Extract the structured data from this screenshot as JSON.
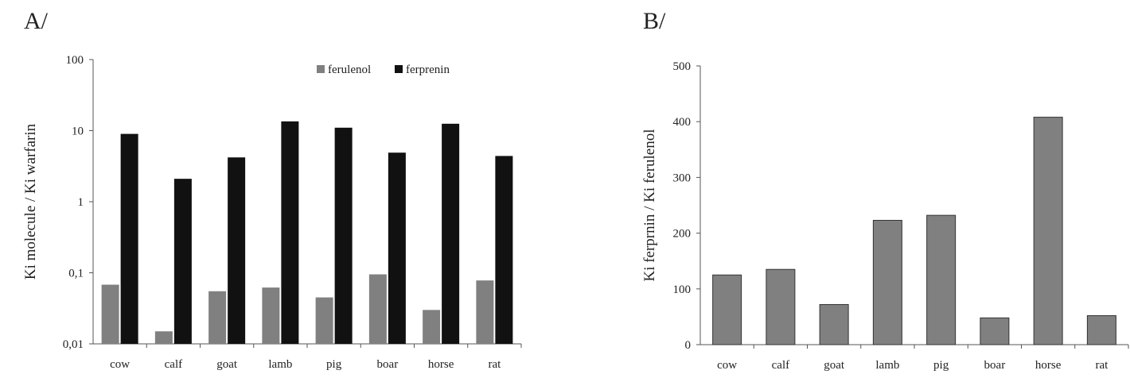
{
  "panels": {
    "a_label": "A/",
    "b_label": "B/"
  },
  "colors": {
    "ferulenol": "#808080",
    "ferprenin": "#111111",
    "panel_b_bar": "#808080",
    "axis": "#555555"
  },
  "chart_data": [
    {
      "type": "bar",
      "panel": "A/",
      "scale": "log",
      "categories": [
        "cow",
        "calf",
        "goat",
        "lamb",
        "pig",
        "boar",
        "horse",
        "rat"
      ],
      "series": [
        {
          "name": "ferulenol",
          "values": [
            0.068,
            0.015,
            0.055,
            0.062,
            0.045,
            0.095,
            0.03,
            0.078
          ]
        },
        {
          "name": "ferprenin",
          "values": [
            9.0,
            2.1,
            4.2,
            13.5,
            11.0,
            4.9,
            12.5,
            4.4
          ]
        }
      ],
      "ylabel": "Ki molecule / Ki warfarin",
      "ylim": [
        0.01,
        100
      ],
      "yticks": [
        0.01,
        0.1,
        1,
        10,
        100
      ],
      "ytick_labels": [
        "0,01",
        "0,1",
        "1",
        "10",
        "100"
      ],
      "legend_position": "top-right",
      "grid": false
    },
    {
      "type": "bar",
      "panel": "B/",
      "scale": "linear",
      "categories": [
        "cow",
        "calf",
        "goat",
        "lamb",
        "pig",
        "boar",
        "horse",
        "rat"
      ],
      "values": [
        125,
        135,
        72,
        223,
        232,
        48,
        408,
        52
      ],
      "ylabel": "Ki ferprnin / Ki ferulenol",
      "ylim": [
        0,
        500
      ],
      "yticks": [
        0,
        100,
        200,
        300,
        400,
        500
      ],
      "ytick_labels": [
        "0",
        "100",
        "200",
        "300",
        "400",
        "500"
      ],
      "grid": false
    }
  ]
}
